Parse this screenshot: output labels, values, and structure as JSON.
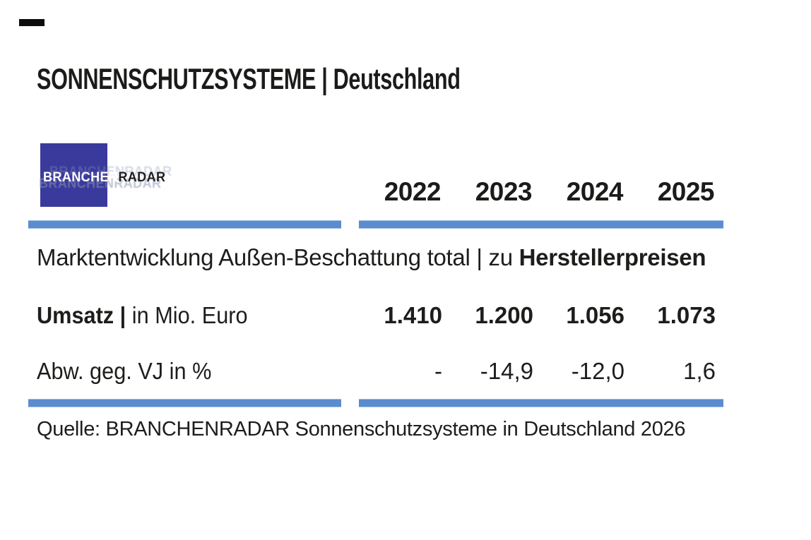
{
  "title": "SONNENSCHUTZSYSTEME | Deutschland",
  "logo": {
    "part1": "BRANCHEN",
    "part2": "RADAR"
  },
  "years": [
    "2022",
    "2023",
    "2024",
    "2025"
  ],
  "section": {
    "regular": "Marktentwicklung Außen-Beschattung total | zu ",
    "bold": "Herstellerpreisen"
  },
  "rows": {
    "umsatz": {
      "label_bold": "Umsatz | ",
      "label_regular": "in Mio. Euro",
      "values": [
        "1.410",
        "1.200",
        "1.056",
        "1.073"
      ]
    },
    "abw": {
      "label": "Abw. geg. VJ in %",
      "values": [
        "-",
        "-14,9",
        "-12,0",
        "1,6"
      ]
    }
  },
  "source": "Quelle: BRANCHENRADAR Sonnenschutzsysteme in Deutschland 2026",
  "colors": {
    "divider_blue": "#5b8ccd",
    "logo_blue": "#3a3a9c",
    "text": "#1d1d1b"
  },
  "chart_data": {
    "type": "table",
    "title": "SONNENSCHUTZSYSTEME | Deutschland",
    "subtitle": "Marktentwicklung Außen-Beschattung total | zu Herstellerpreisen",
    "categories": [
      "2022",
      "2023",
      "2024",
      "2025"
    ],
    "series": [
      {
        "name": "Umsatz | in Mio. Euro",
        "values": [
          1410,
          1200,
          1056,
          1073
        ]
      },
      {
        "name": "Abw. geg. VJ in %",
        "values": [
          null,
          -14.9,
          -12.0,
          1.6
        ]
      }
    ],
    "source": "Quelle: BRANCHENRADAR Sonnenschutzsysteme in Deutschland 2026"
  }
}
